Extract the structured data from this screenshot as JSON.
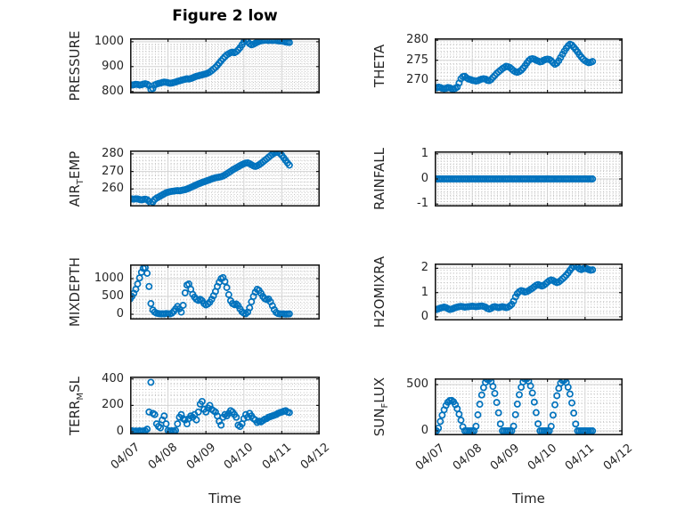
{
  "figure": {
    "title": "Figure 2 low",
    "xlabel": "Time",
    "marker": {
      "shape": "circle-open",
      "color": "#0072BD"
    },
    "x_ticks": {
      "values": [
        0,
        1,
        2,
        3,
        4,
        5
      ],
      "labels": [
        "04/07",
        "04/08",
        "04/09",
        "04/10",
        "04/11",
        "04/12"
      ]
    },
    "x_minor_step": 0.0833,
    "x_axis_note": "x in days since 04/07"
  },
  "chart_data": [
    {
      "type": "scatter",
      "ylabel": "PRESSURE",
      "ylabel_parts": {
        "pre": "PRESSURE",
        "sub": "",
        "post": ""
      },
      "ylim": [
        792,
        1014
      ],
      "yticks": [
        800,
        900,
        1000
      ],
      "ytick_labels": [
        "800",
        "900",
        "1000"
      ],
      "y_minor_step": 10,
      "xlim": [
        0,
        5
      ],
      "show_x_tick_labels": false,
      "t_start": 0,
      "t_step": 0.05,
      "values": [
        828,
        826,
        827,
        829,
        828,
        826,
        827,
        830,
        831,
        829,
        824,
        808,
        812,
        826,
        830,
        832,
        834,
        836,
        838,
        837,
        835,
        833,
        834,
        836,
        838,
        841,
        843,
        845,
        847,
        849,
        851,
        850,
        852,
        855,
        858,
        861,
        863,
        865,
        867,
        869,
        871,
        874,
        878,
        884,
        890,
        897,
        905,
        914,
        923,
        932,
        940,
        947,
        952,
        956,
        958,
        956,
        960,
        967,
        976,
        988,
        999,
        1005,
        1000,
        992,
        988,
        990,
        994,
        998,
        1002,
        1004,
        1005,
        1006,
        1006,
        1005,
        1006,
        1005,
        1006,
        1005,
        1004,
        1003,
        1003,
        1001,
        999,
        998,
        997
      ]
    },
    {
      "type": "scatter",
      "ylabel": "THETA",
      "ylabel_parts": {
        "pre": "THETA",
        "sub": "",
        "post": ""
      },
      "ylim": [
        266.7,
        280.5
      ],
      "yticks": [
        270,
        275,
        280
      ],
      "ytick_labels": [
        "270",
        "275",
        "280"
      ],
      "y_minor_step": 1,
      "xlim": [
        0,
        5
      ],
      "show_x_tick_labels": false,
      "t_start": 0,
      "t_step": 0.05,
      "values": [
        268.2,
        268.1,
        268.3,
        268.2,
        268.0,
        267.9,
        268.0,
        268.2,
        268.1,
        267.9,
        267.8,
        268.0,
        268.3,
        269.3,
        270.4,
        270.9,
        271.0,
        270.6,
        270.3,
        270.2,
        270.0,
        269.9,
        269.8,
        269.9,
        270.1,
        270.3,
        270.4,
        270.3,
        270.0,
        269.9,
        270.2,
        270.7,
        271.2,
        271.7,
        272.1,
        272.5,
        272.9,
        273.2,
        273.5,
        273.4,
        273.2,
        272.8,
        272.4,
        272.1,
        272.0,
        272.2,
        272.5,
        273.0,
        273.6,
        274.3,
        274.9,
        275.3,
        275.4,
        275.3,
        275.0,
        274.8,
        274.6,
        274.7,
        275.0,
        275.2,
        275.3,
        275.2,
        274.9,
        274.4,
        274.0,
        274.3,
        274.9,
        275.7,
        276.5,
        277.3,
        278.0,
        278.6,
        279.0,
        278.8,
        278.3,
        277.7,
        277.1,
        276.4,
        275.8,
        275.3,
        274.9,
        274.6,
        274.4,
        274.5,
        274.7
      ]
    },
    {
      "type": "scatter",
      "ylabel": "AIR_TEMP",
      "ylabel_parts": {
        "pre": "AIR",
        "sub": "T",
        "post": "EMP"
      },
      "ylim": [
        250,
        282
      ],
      "yticks": [
        260,
        270,
        280
      ],
      "ytick_labels": [
        "260",
        "270",
        "280"
      ],
      "y_minor_step": 2,
      "xlim": [
        0,
        5
      ],
      "show_x_tick_labels": false,
      "t_start": 0,
      "t_step": 0.05,
      "values": [
        254.5,
        254.3,
        254.2,
        254.4,
        254.3,
        254.0,
        253.8,
        254.0,
        254.2,
        253.9,
        253.0,
        251.8,
        252.6,
        254.0,
        254.8,
        255.4,
        256.0,
        256.6,
        257.2,
        257.8,
        258.2,
        258.5,
        258.7,
        258.8,
        259.0,
        259.1,
        259.0,
        259.2,
        259.4,
        259.6,
        260.0,
        260.4,
        260.9,
        261.4,
        261.9,
        262.4,
        262.9,
        263.3,
        263.7,
        264.1,
        264.5,
        264.9,
        265.3,
        265.7,
        266.1,
        266.4,
        266.6,
        266.8,
        267.0,
        267.4,
        268.0,
        268.7,
        269.4,
        270.1,
        270.8,
        271.5,
        272.1,
        272.7,
        273.3,
        273.9,
        274.4,
        274.8,
        274.9,
        274.5,
        273.8,
        273.2,
        272.9,
        273.2,
        273.8,
        274.6,
        275.4,
        276.3,
        277.2,
        278.1,
        279.0,
        279.8,
        280.5,
        280.9,
        281.0,
        280.3,
        279.2,
        277.8,
        276.3,
        274.9,
        273.6
      ]
    },
    {
      "type": "scatter",
      "ylabel": "RAINFALL",
      "ylabel_parts": {
        "pre": "RAINFALL",
        "sub": "",
        "post": ""
      },
      "ylim": [
        -1.1,
        1.1
      ],
      "yticks": [
        -1,
        0,
        1
      ],
      "ytick_labels": [
        "-1",
        "0",
        "1"
      ],
      "y_minor_step": 0.1,
      "xlim": [
        0,
        5
      ],
      "show_x_tick_labels": false,
      "t_start": 0,
      "t_step": 0.05,
      "values": [
        0,
        0,
        0,
        0,
        0,
        0,
        0,
        0,
        0,
        0,
        0,
        0,
        0,
        0,
        0,
        0,
        0,
        0,
        0,
        0,
        0,
        0,
        0,
        0,
        0,
        0,
        0,
        0,
        0,
        0,
        0,
        0,
        0,
        0,
        0,
        0,
        0,
        0,
        0,
        0,
        0,
        0,
        0,
        0,
        0,
        0,
        0,
        0,
        0,
        0,
        0,
        0,
        0,
        0,
        0,
        0,
        0,
        0,
        0,
        0,
        0,
        0,
        0,
        0,
        0,
        0,
        0,
        0,
        0,
        0,
        0,
        0,
        0,
        0,
        0,
        0,
        0,
        0,
        0,
        0,
        0,
        0,
        0,
        0,
        0
      ]
    },
    {
      "type": "scatter",
      "ylabel": "MIXDEPTH",
      "ylabel_parts": {
        "pre": "MIXDEPTH",
        "sub": "",
        "post": ""
      },
      "ylim": [
        -150,
        1400
      ],
      "yticks": [
        0,
        500,
        1000
      ],
      "ytick_labels": [
        "0",
        "500",
        "1000"
      ],
      "y_minor_step": 100,
      "xlim": [
        0,
        5
      ],
      "show_x_tick_labels": false,
      "t_start": 0,
      "t_step": 0.05,
      "values": [
        430,
        500,
        590,
        700,
        850,
        1020,
        1180,
        1290,
        1310,
        1150,
        780,
        300,
        120,
        60,
        30,
        20,
        10,
        15,
        10,
        20,
        15,
        10,
        30,
        80,
        150,
        220,
        150,
        60,
        250,
        600,
        820,
        850,
        700,
        560,
        480,
        420,
        390,
        420,
        380,
        300,
        260,
        290,
        340,
        420,
        520,
        640,
        780,
        900,
        1000,
        1030,
        920,
        750,
        550,
        380,
        300,
        270,
        290,
        240,
        150,
        70,
        30,
        15,
        60,
        180,
        350,
        500,
        620,
        700,
        670,
        590,
        500,
        440,
        410,
        430,
        350,
        240,
        130,
        50,
        20,
        10,
        8,
        10,
        6,
        8,
        10
      ]
    },
    {
      "type": "scatter",
      "ylabel": "H2OMIXRA",
      "ylabel_parts": {
        "pre": "H2OMIXRA",
        "sub": "",
        "post": ""
      },
      "ylim": [
        -0.15,
        2.2
      ],
      "yticks": [
        0,
        1,
        2
      ],
      "ytick_labels": [
        "0",
        "1",
        "2"
      ],
      "y_minor_step": 0.2,
      "xlim": [
        0,
        5
      ],
      "show_x_tick_labels": false,
      "t_start": 0,
      "t_step": 0.05,
      "values": [
        0.32,
        0.3,
        0.33,
        0.36,
        0.38,
        0.4,
        0.38,
        0.34,
        0.3,
        0.32,
        0.35,
        0.38,
        0.4,
        0.42,
        0.43,
        0.42,
        0.4,
        0.41,
        0.42,
        0.43,
        0.44,
        0.43,
        0.42,
        0.43,
        0.44,
        0.45,
        0.43,
        0.4,
        0.35,
        0.32,
        0.35,
        0.4,
        0.42,
        0.4,
        0.38,
        0.4,
        0.42,
        0.4,
        0.38,
        0.4,
        0.45,
        0.52,
        0.65,
        0.82,
        0.96,
        1.04,
        1.08,
        1.06,
        1.02,
        1.04,
        1.08,
        1.13,
        1.18,
        1.24,
        1.3,
        1.33,
        1.3,
        1.27,
        1.3,
        1.36,
        1.43,
        1.49,
        1.52,
        1.5,
        1.45,
        1.41,
        1.44,
        1.5,
        1.57,
        1.64,
        1.72,
        1.81,
        1.92,
        2.02,
        2.09,
        2.11,
        2.05,
        1.98,
        1.95,
        1.98,
        2.01,
        1.98,
        1.95,
        1.92,
        1.94
      ]
    },
    {
      "type": "scatter",
      "ylabel": "TERR_MSL",
      "ylabel_parts": {
        "pre": "TERR",
        "sub": "M",
        "post": "SL"
      },
      "ylim": [
        -20,
        418
      ],
      "yticks": [
        0,
        200,
        400
      ],
      "ytick_labels": [
        "0",
        "200",
        "400"
      ],
      "y_minor_step": 40,
      "xlim": [
        0,
        5
      ],
      "show_x_tick_labels": true,
      "t_start": 0,
      "t_step": 0.05,
      "values": [
        5,
        8,
        4,
        6,
        5,
        7,
        5,
        6,
        8,
        20,
        150,
        375,
        140,
        130,
        60,
        40,
        30,
        90,
        120,
        60,
        10,
        5,
        8,
        5,
        10,
        60,
        110,
        130,
        100,
        90,
        60,
        100,
        120,
        110,
        130,
        90,
        150,
        210,
        230,
        170,
        150,
        180,
        200,
        170,
        160,
        150,
        120,
        80,
        50,
        110,
        130,
        120,
        140,
        160,
        150,
        130,
        110,
        50,
        40,
        60,
        100,
        130,
        110,
        140,
        120,
        100,
        90,
        70,
        80,
        75,
        85,
        95,
        100,
        110,
        115,
        120,
        125,
        130,
        140,
        145,
        150,
        155,
        160,
        150,
        145
      ]
    },
    {
      "type": "scatter",
      "ylabel": "SUN_FLUX",
      "ylabel_parts": {
        "pre": "SUN",
        "sub": "F",
        "post": "LUX"
      },
      "ylim": [
        -48,
        567
      ],
      "yticks": [
        0,
        500
      ],
      "ytick_labels": [
        "0",
        "500"
      ],
      "y_minor_step": 100,
      "xlim": [
        0,
        5
      ],
      "show_x_tick_labels": true,
      "t_start": 0,
      "t_step": 0.05,
      "values": [
        0,
        0,
        30,
        102,
        169,
        228,
        275,
        309,
        327,
        329,
        314,
        283,
        239,
        181,
        115,
        44,
        0,
        0,
        0,
        0,
        0,
        0,
        50,
        173,
        287,
        387,
        467,
        524,
        555,
        558,
        533,
        480,
        405,
        307,
        195,
        75,
        0,
        0,
        0,
        0,
        0,
        0,
        51,
        175,
        289,
        390,
        471,
        529,
        560,
        563,
        537,
        485,
        409,
        310,
        197,
        76,
        0,
        0,
        0,
        0,
        0,
        0,
        49,
        170,
        282,
        380,
        459,
        515,
        545,
        548,
        523,
        472,
        398,
        302,
        192,
        74,
        0,
        0,
        0,
        0,
        0,
        0,
        0,
        0,
        0
      ]
    }
  ]
}
